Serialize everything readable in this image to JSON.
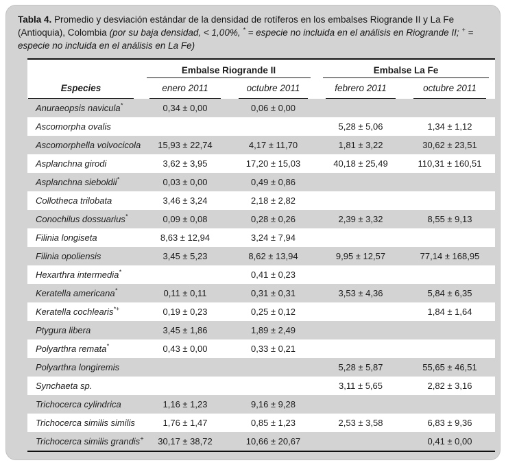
{
  "title": {
    "label": "Tabla 4.",
    "desc": " Promedio y desviación estándar de la densidad de rotíferos en los embalses Riogrande II y La Fe (Antioquia), Colombia ",
    "note_pre": "(por su baja densidad, < 1,00%, ",
    "star_mark": "*",
    "note_mid": " = especie no incluida en el análisis en Riogrande II; ",
    "plus_mark": "+",
    "note_end": " = especie no incluida en el análisis en La Fe)"
  },
  "table": {
    "groups": [
      "Embalse Riogrande II",
      "Embalse La Fe"
    ],
    "columns": [
      "Especies",
      "enero 2011",
      "octubre 2011",
      "febrero 2011",
      "octubre 2011"
    ],
    "rows": [
      {
        "species": "Anuraeopsis navicula",
        "sup": "*",
        "values": [
          "0,34 ± 0,00",
          "0,06 ± 0,00",
          "",
          ""
        ]
      },
      {
        "species": "Ascomorpha ovalis",
        "sup": "",
        "values": [
          "",
          "",
          "5,28 ± 5,06",
          "1,34 ± 1,12"
        ]
      },
      {
        "species": "Ascomorphella volvocicola",
        "sup": "",
        "values": [
          "15,93 ± 22,74",
          "4,17 ± 11,70",
          "1,81 ± 3,22",
          "30,62 ± 23,51"
        ]
      },
      {
        "species": "Asplanchna girodi",
        "sup": "",
        "values": [
          "3,62 ± 3,95",
          "17,20 ± 15,03",
          "40,18 ± 25,49",
          "110,31 ± 160,51"
        ]
      },
      {
        "species": "Asplanchna sieboldii",
        "sup": "*",
        "values": [
          "0,03 ± 0,00",
          "0,49 ± 0,86",
          "",
          ""
        ]
      },
      {
        "species": "Collotheca trilobata",
        "sup": "",
        "values": [
          "3,46 ± 3,24",
          "2,18 ± 2,82",
          "",
          ""
        ]
      },
      {
        "species": "Conochilus dossuarius",
        "sup": "*",
        "values": [
          "0,09 ± 0,08",
          "0,28 ± 0,26",
          "2,39 ± 3,32",
          "8,55 ± 9,13"
        ]
      },
      {
        "species": "Filinia longiseta",
        "sup": "",
        "values": [
          "8,63 ± 12,94",
          "3,24 ± 7,94",
          "",
          ""
        ]
      },
      {
        "species": "Filinia opoliensis",
        "sup": "",
        "values": [
          "3,45 ± 5,23",
          "8,62 ± 13,94",
          "9,95 ± 12,57",
          "77,14 ± 168,95"
        ]
      },
      {
        "species": "Hexarthra intermedia",
        "sup": "*",
        "values": [
          "",
          "0,41 ± 0,23",
          "",
          ""
        ]
      },
      {
        "species": "Keratella americana",
        "sup": "*",
        "values": [
          "0,11 ± 0,11",
          "0,31 ± 0,31",
          "3,53 ± 4,36",
          "5,84 ± 6,35"
        ]
      },
      {
        "species": "Keratella cochlearis",
        "sup": "*+",
        "values": [
          "0,19 ± 0,23",
          "0,25 ± 0,12",
          "",
          "1,84 ± 1,64"
        ]
      },
      {
        "species": "Ptygura libera",
        "sup": "",
        "values": [
          "3,45 ± 1,86",
          "1,89 ± 2,49",
          "",
          ""
        ]
      },
      {
        "species": "Polyarthra remata",
        "sup": "*",
        "values": [
          "0,43 ± 0,00",
          "0,33 ± 0,21",
          "",
          ""
        ]
      },
      {
        "species": "Polyarthra longiremis",
        "sup": "",
        "values": [
          "",
          "",
          "5,28 ± 5,87",
          "55,65 ± 46,51"
        ]
      },
      {
        "species": "Synchaeta sp.",
        "sup": "",
        "values": [
          "",
          "",
          "3,11 ± 5,65",
          "2,82 ± 3,16"
        ]
      },
      {
        "species": "Trichocerca cylindrica",
        "sup": "",
        "values": [
          "1,16 ± 1,23",
          "9,16 ± 9,28",
          "",
          ""
        ]
      },
      {
        "species": "Trichocerca similis similis",
        "sup": "",
        "values": [
          "1,76 ± 1,47",
          "0,85 ± 1,23",
          "2,53 ± 3,58",
          "6,83 ± 9,36"
        ]
      },
      {
        "species": "Trichocerca similis grandis",
        "sup": "+",
        "values": [
          "30,17 ± 38,72",
          "10,66 ± 20,67",
          "",
          "0,41 ± 0,00"
        ]
      }
    ]
  },
  "colors": {
    "frame_background": "#d3d3d3",
    "row_shade": "#d3d3d3",
    "row_plain": "#ffffff",
    "rule": "#111111",
    "text": "#1c1c1c"
  }
}
